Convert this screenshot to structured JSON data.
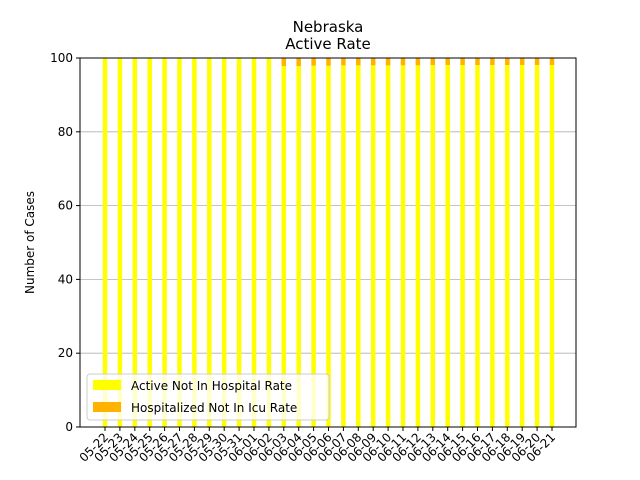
{
  "chart_data": {
    "type": "bar",
    "stacked": true,
    "title": "Nebraska",
    "subtitle": "Active Rate",
    "xlabel": "",
    "ylabel": "Number of Cases",
    "ylim": [
      0,
      100
    ],
    "yticks": [
      0,
      20,
      40,
      60,
      80,
      100
    ],
    "grid": "y",
    "legend_position": "lower-left",
    "categories": [
      "05-22",
      "05-23",
      "05-24",
      "05-25",
      "05-26",
      "05-27",
      "05-28",
      "05-29",
      "05-30",
      "05-31",
      "06-01",
      "06-02",
      "06-03",
      "06-04",
      "06-05",
      "06-06",
      "06-07",
      "06-08",
      "06-09",
      "06-10",
      "06-11",
      "06-12",
      "06-13",
      "06-14",
      "06-15",
      "06-16",
      "06-17",
      "06-18",
      "06-19",
      "06-20",
      "06-21"
    ],
    "series": [
      {
        "name": "Active Not In Hospital Rate",
        "color": "#ffff00",
        "values": [
          100,
          100,
          100,
          100,
          100,
          100,
          100,
          100,
          100,
          100,
          100,
          100,
          97.8,
          97.8,
          97.9,
          97.9,
          98.0,
          98.0,
          98.0,
          98.0,
          98.0,
          98.0,
          98.1,
          98.1,
          98.1,
          98.1,
          98.1,
          98.1,
          98.1,
          98.1,
          98.1
        ]
      },
      {
        "name": "Hospitalized Not In Icu Rate",
        "color": "#ffb300",
        "values": [
          0,
          0,
          0,
          0,
          0,
          0,
          0,
          0,
          0,
          0,
          0,
          0,
          2.2,
          2.2,
          2.1,
          2.1,
          2.0,
          2.0,
          2.0,
          2.0,
          2.0,
          2.0,
          1.9,
          1.9,
          1.9,
          1.9,
          1.9,
          1.9,
          1.9,
          1.9,
          1.9
        ]
      }
    ]
  }
}
